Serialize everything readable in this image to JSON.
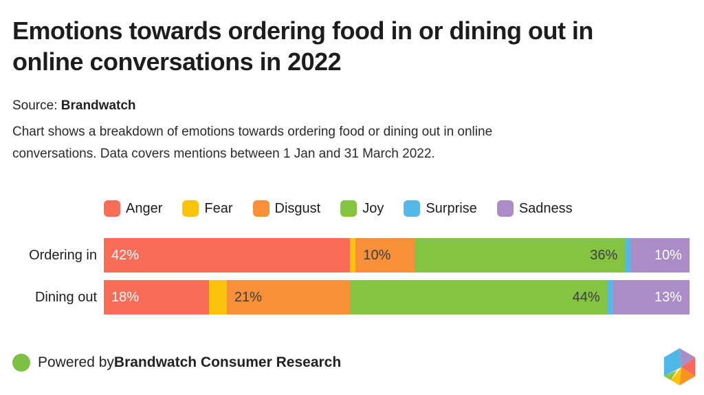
{
  "chart_data": {
    "type": "bar",
    "stacked": true,
    "orientation": "horizontal",
    "title": "Emotions towards ordering food in or dining out in\nonline conversations in 2022",
    "source_prefix": "Source: ",
    "source": "Brandwatch",
    "description": "Chart shows a breakdown of emotions towards ordering food or dining out in online\nconversations. Data covers mentions between 1 Jan and 31 March 2022.",
    "categories": [
      "Ordering in",
      "Dining out"
    ],
    "series": [
      {
        "name": "Anger",
        "color": "#F96C57",
        "values": [
          42,
          18
        ],
        "label_color": "#ffffff",
        "label_align": "left"
      },
      {
        "name": "Fear",
        "color": "#FCC30D",
        "values": [
          1,
          3
        ],
        "label_color": "#3d3d3d",
        "label_align": "left"
      },
      {
        "name": "Disgust",
        "color": "#F79038",
        "values": [
          10,
          21
        ],
        "label_color": "#3d3d3d",
        "label_align": "left"
      },
      {
        "name": "Joy",
        "color": "#85C441",
        "values": [
          36,
          44
        ],
        "label_color": "#3d3d3d",
        "label_align": "right"
      },
      {
        "name": "Surprise",
        "color": "#55B8E8",
        "values": [
          1,
          1
        ],
        "label_color": "#ffffff",
        "label_align": "right"
      },
      {
        "name": "Sadness",
        "color": "#AA8DC6",
        "values": [
          10,
          13
        ],
        "label_color": "#ffffff",
        "label_align": "right"
      }
    ],
    "value_unit": "%",
    "label_min_value": 10,
    "axis_range": [
      0,
      100
    ],
    "grid": false,
    "legend_position": "top"
  },
  "footer": {
    "powered_by": "Powered by ",
    "brand": "Brandwatch Consumer Research",
    "dot_color": "#7CC142"
  },
  "logo_colors": {
    "blue": "#4FB8E7",
    "purple": "#A98DC6",
    "red": "#F9685C",
    "orange": "#F7941D",
    "yellow": "#FFC20E",
    "green": "#8CC63F"
  }
}
